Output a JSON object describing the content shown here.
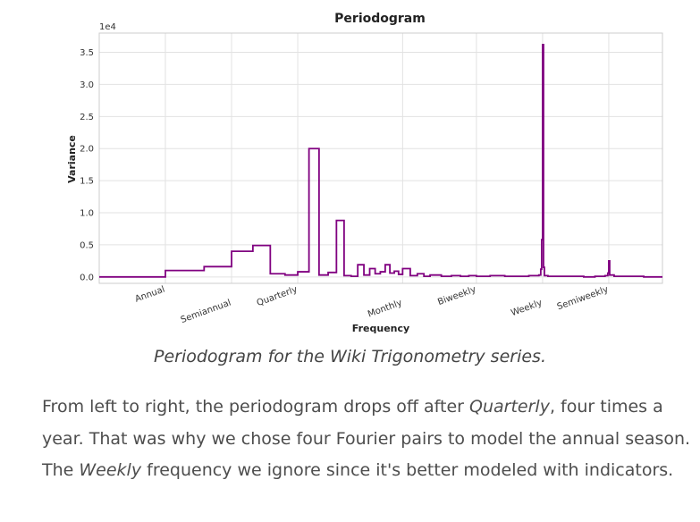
{
  "chart_data": {
    "type": "line",
    "title": "Periodogram",
    "xlabel": "Frequency",
    "ylabel": "Variance",
    "y_offset_label": "1e4",
    "x_scale": "log",
    "xlim": [
      0.5,
      182.5
    ],
    "ylim": [
      -0.1,
      3.8
    ],
    "grid": true,
    "series_color": "#800080",
    "yticks": [
      0.0,
      0.5,
      1.0,
      1.5,
      2.0,
      2.5,
      3.0,
      3.5
    ],
    "ytick_labels": [
      "0.0",
      "0.5",
      "1.0",
      "1.5",
      "2.0",
      "2.5",
      "3.0",
      "3.5"
    ],
    "xticks": [
      1,
      2,
      4,
      12,
      26,
      52,
      104
    ],
    "xtick_labels": [
      "Annual",
      "Semiannual",
      "Quarterly",
      "Monthly",
      "Biweekly",
      "Weekly",
      "Semiweekly"
    ],
    "series": [
      {
        "name": "Periodogram",
        "x": [
          0.5,
          1,
          1.5,
          2,
          2.5,
          3,
          3.5,
          4,
          4.5,
          5,
          5.5,
          6,
          6.5,
          7,
          7.5,
          8,
          8.5,
          9,
          9.5,
          10,
          10.5,
          11,
          11.5,
          12,
          13,
          14,
          15,
          16,
          18,
          20,
          22,
          24,
          26,
          30,
          35,
          40,
          45,
          50,
          51,
          51.5,
          52,
          52.5,
          53,
          55,
          60,
          70,
          80,
          90,
          100,
          103,
          104,
          105,
          110,
          130,
          150,
          182.5
        ],
        "values": [
          0.0,
          0.1,
          0.16,
          0.4,
          0.49,
          0.05,
          0.03,
          0.08,
          2.0,
          0.03,
          0.07,
          0.88,
          0.02,
          0.01,
          0.19,
          0.03,
          0.13,
          0.05,
          0.08,
          0.19,
          0.06,
          0.09,
          0.04,
          0.13,
          0.02,
          0.05,
          0.01,
          0.03,
          0.01,
          0.02,
          0.01,
          0.02,
          0.01,
          0.02,
          0.01,
          0.01,
          0.02,
          0.03,
          0.12,
          0.58,
          3.62,
          0.15,
          0.02,
          0.01,
          0.01,
          0.01,
          0.0,
          0.01,
          0.02,
          0.06,
          0.25,
          0.03,
          0.01,
          0.01,
          0.0,
          0.0
        ]
      }
    ]
  },
  "caption": "Periodogram for the Wiki Trigonometry series.",
  "paragraph": {
    "part1": "From left to right, the periodogram drops off after ",
    "em1": "Quarterly",
    "part2": ", four times a year. That was why we chose four Fourier pairs to model the annual season. The ",
    "em2": "Weekly",
    "part3": " frequency we ignore since it's better modeled with indicators."
  }
}
